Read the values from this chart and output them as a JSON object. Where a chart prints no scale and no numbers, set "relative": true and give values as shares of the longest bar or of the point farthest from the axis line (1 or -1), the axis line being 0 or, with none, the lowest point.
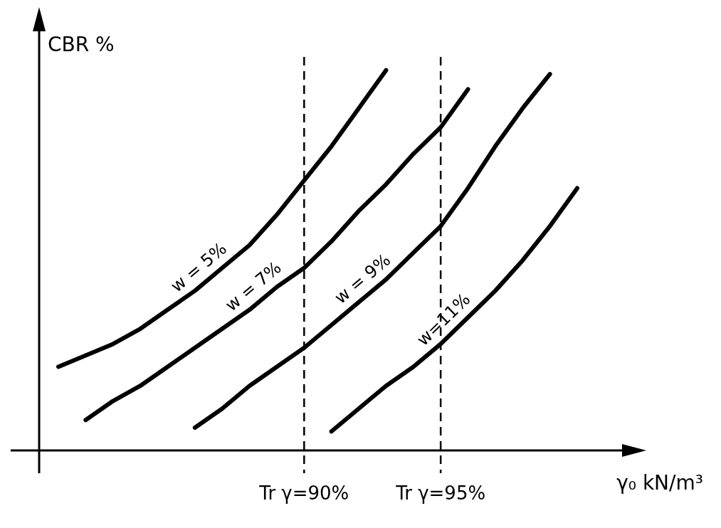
{
  "chart_data": {
    "type": "line",
    "relative": true,
    "xlabel": "γ₀ kN/m³",
    "ylabel": "CBR %",
    "legend": false,
    "marker": "none",
    "categories": [
      null,
      null,
      null,
      null,
      null,
      null,
      null,
      null,
      null,
      null,
      null,
      null,
      null,
      null,
      null,
      null,
      null,
      null,
      null,
      null
    ],
    "series": [
      {
        "name": "w = 5%",
        "color": "#000000",
        "values": [
          0.22,
          0.25,
          0.28,
          0.32,
          0.37,
          0.42,
          0.48,
          0.54,
          0.62,
          0.71,
          0.8,
          0.9,
          1.0,
          null,
          null,
          null,
          null,
          null,
          null,
          null
        ]
      },
      {
        "name": "w = 7%",
        "color": "#000000",
        "values": [
          null,
          0.08,
          0.13,
          0.17,
          0.22,
          0.27,
          0.32,
          0.37,
          0.43,
          0.48,
          0.55,
          0.63,
          0.7,
          0.78,
          0.85,
          0.95,
          null,
          null,
          null,
          null
        ]
      },
      {
        "name": "w = 9%",
        "color": "#000000",
        "values": [
          null,
          null,
          null,
          null,
          null,
          0.06,
          0.11,
          0.17,
          0.22,
          0.27,
          0.33,
          0.39,
          0.45,
          0.52,
          0.59,
          0.69,
          0.8,
          0.9,
          0.99,
          null
        ]
      },
      {
        "name": "w=11%",
        "color": "#000000",
        "values": [
          null,
          null,
          null,
          null,
          null,
          null,
          null,
          null,
          null,
          null,
          0.05,
          0.11,
          0.17,
          0.22,
          0.28,
          0.35,
          0.42,
          0.5,
          0.59,
          0.69
        ]
      }
    ],
    "annotations": [
      "Tr γ=90%",
      "Tr γ=95%"
    ]
  }
}
